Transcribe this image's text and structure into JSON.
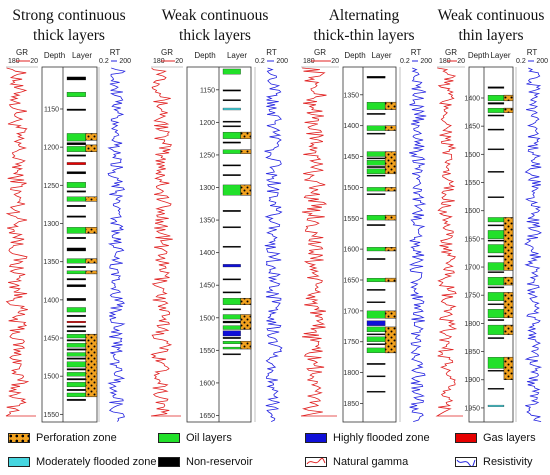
{
  "panels": [
    {
      "title_line1": "Strong continuous",
      "title_line2": "thick layers",
      "header": {
        "gr": "GR",
        "gr_min": "180",
        "gr_max": "20",
        "depth": "Depth",
        "layer": "Layer",
        "rt": "RT",
        "rt_min": "0.2",
        "rt_max": "200"
      },
      "depth_range": [
        1095,
        1560
      ],
      "depth_ticks": [
        1150,
        1200,
        1250,
        1300,
        1350,
        1400,
        1450,
        1500,
        1550
      ],
      "layers": [
        {
          "top": 1108,
          "bottom": 1112,
          "type": "non"
        },
        {
          "top": 1128,
          "bottom": 1134,
          "type": "oil"
        },
        {
          "top": 1150,
          "bottom": 1152,
          "type": "non"
        },
        {
          "top": 1182,
          "bottom": 1192,
          "type": "oil"
        },
        {
          "top": 1194,
          "bottom": 1197,
          "type": "non"
        },
        {
          "top": 1199,
          "bottom": 1206,
          "type": "oil"
        },
        {
          "top": 1210,
          "bottom": 1212,
          "type": "non"
        },
        {
          "top": 1220,
          "bottom": 1223,
          "type": "gas"
        },
        {
          "top": 1232,
          "bottom": 1235,
          "type": "non"
        },
        {
          "top": 1246,
          "bottom": 1253,
          "type": "oil"
        },
        {
          "top": 1257,
          "bottom": 1259,
          "type": "non"
        },
        {
          "top": 1265,
          "bottom": 1271,
          "type": "oil"
        },
        {
          "top": 1276,
          "bottom": 1278,
          "type": "non"
        },
        {
          "top": 1290,
          "bottom": 1292,
          "type": "non"
        },
        {
          "top": 1305,
          "bottom": 1313,
          "type": "oil"
        },
        {
          "top": 1318,
          "bottom": 1320,
          "type": "non"
        },
        {
          "top": 1332,
          "bottom": 1336,
          "type": "non"
        },
        {
          "top": 1346,
          "bottom": 1352,
          "type": "oil"
        },
        {
          "top": 1356,
          "bottom": 1358,
          "type": "non"
        },
        {
          "top": 1362,
          "bottom": 1366,
          "type": "oil"
        },
        {
          "top": 1372,
          "bottom": 1374,
          "type": "non"
        },
        {
          "top": 1380,
          "bottom": 1383,
          "type": "non"
        },
        {
          "top": 1398,
          "bottom": 1401,
          "type": "non"
        },
        {
          "top": 1410,
          "bottom": 1416,
          "type": "oil"
        },
        {
          "top": 1420,
          "bottom": 1422,
          "type": "non"
        },
        {
          "top": 1428,
          "bottom": 1430,
          "type": "gas"
        },
        {
          "top": 1434,
          "bottom": 1436,
          "type": "non"
        },
        {
          "top": 1440,
          "bottom": 1442,
          "type": "non"
        },
        {
          "top": 1445,
          "bottom": 1450,
          "type": "oil"
        },
        {
          "top": 1452,
          "bottom": 1454,
          "type": "non"
        },
        {
          "top": 1457,
          "bottom": 1462,
          "type": "oil"
        },
        {
          "top": 1464,
          "bottom": 1466,
          "type": "non"
        },
        {
          "top": 1469,
          "bottom": 1474,
          "type": "oil"
        },
        {
          "top": 1476,
          "bottom": 1478,
          "type": "non"
        },
        {
          "top": 1481,
          "bottom": 1488,
          "type": "oil"
        },
        {
          "top": 1490,
          "bottom": 1492,
          "type": "non"
        },
        {
          "top": 1495,
          "bottom": 1500,
          "type": "oil"
        },
        {
          "top": 1503,
          "bottom": 1505,
          "type": "non"
        },
        {
          "top": 1508,
          "bottom": 1514,
          "type": "oil"
        },
        {
          "top": 1517,
          "bottom": 1519,
          "type": "non"
        },
        {
          "top": 1522,
          "bottom": 1527,
          "type": "oil"
        },
        {
          "top": 1530,
          "bottom": 1532,
          "type": "non"
        }
      ],
      "perforations": [
        {
          "top": 1182,
          "bottom": 1191
        },
        {
          "top": 1197,
          "bottom": 1206
        },
        {
          "top": 1265,
          "bottom": 1271
        },
        {
          "top": 1305,
          "bottom": 1313
        },
        {
          "top": 1346,
          "bottom": 1352
        },
        {
          "top": 1362,
          "bottom": 1366
        },
        {
          "top": 1445,
          "bottom": 1527
        }
      ]
    },
    {
      "title_line1": "Weak continuous",
      "title_line2": "thick layers",
      "header": {
        "gr": "GR",
        "gr_min": "180",
        "gr_max": "20",
        "depth": "Depth",
        "layer": "Layer",
        "rt": "RT",
        "rt_min": "0.2",
        "rt_max": "200"
      },
      "depth_range": [
        1115,
        1660
      ],
      "depth_ticks": [
        1150,
        1200,
        1250,
        1300,
        1350,
        1400,
        1450,
        1500,
        1550,
        1600,
        1650
      ],
      "layers": [
        {
          "top": 1118,
          "bottom": 1126,
          "type": "oil"
        },
        {
          "top": 1150,
          "bottom": 1152,
          "type": "non"
        },
        {
          "top": 1165,
          "bottom": 1167,
          "type": "non"
        },
        {
          "top": 1178,
          "bottom": 1181,
          "type": "mod"
        },
        {
          "top": 1198,
          "bottom": 1200,
          "type": "non"
        },
        {
          "top": 1205,
          "bottom": 1207,
          "type": "non"
        },
        {
          "top": 1215,
          "bottom": 1225,
          "type": "oil"
        },
        {
          "top": 1230,
          "bottom": 1232,
          "type": "non"
        },
        {
          "top": 1242,
          "bottom": 1248,
          "type": "oil"
        },
        {
          "top": 1265,
          "bottom": 1267,
          "type": "non"
        },
        {
          "top": 1280,
          "bottom": 1282,
          "type": "non"
        },
        {
          "top": 1296,
          "bottom": 1312,
          "type": "oil"
        },
        {
          "top": 1335,
          "bottom": 1337,
          "type": "non"
        },
        {
          "top": 1360,
          "bottom": 1362,
          "type": "non"
        },
        {
          "top": 1390,
          "bottom": 1392,
          "type": "non"
        },
        {
          "top": 1418,
          "bottom": 1422,
          "type": "high"
        },
        {
          "top": 1440,
          "bottom": 1442,
          "type": "non"
        },
        {
          "top": 1460,
          "bottom": 1462,
          "type": "non"
        },
        {
          "top": 1470,
          "bottom": 1480,
          "type": "oil"
        },
        {
          "top": 1486,
          "bottom": 1488,
          "type": "non"
        },
        {
          "top": 1495,
          "bottom": 1502,
          "type": "oil"
        },
        {
          "top": 1505,
          "bottom": 1508,
          "type": "non"
        },
        {
          "top": 1512,
          "bottom": 1518,
          "type": "oil"
        },
        {
          "top": 1520,
          "bottom": 1528,
          "type": "high"
        },
        {
          "top": 1530,
          "bottom": 1532,
          "type": "non"
        },
        {
          "top": 1536,
          "bottom": 1540,
          "type": "oil"
        },
        {
          "top": 1545,
          "bottom": 1548,
          "type": "oil"
        },
        {
          "top": 1555,
          "bottom": 1557,
          "type": "non"
        }
      ],
      "perforations": [
        {
          "top": 1215,
          "bottom": 1225
        },
        {
          "top": 1242,
          "bottom": 1248
        },
        {
          "top": 1296,
          "bottom": 1312
        },
        {
          "top": 1470,
          "bottom": 1480
        },
        {
          "top": 1495,
          "bottom": 1518
        },
        {
          "top": 1536,
          "bottom": 1548
        }
      ]
    },
    {
      "title_line1": "Alternating",
      "title_line2": "thick-thin layers",
      "header": {
        "gr": "GR",
        "gr_min": "180",
        "gr_max": "20",
        "depth": "Depth",
        "layer": "Layer",
        "rt": "RT",
        "rt_min": "0.2",
        "rt_max": "200"
      },
      "depth_range": [
        1305,
        1880
      ],
      "depth_ticks": [
        1350,
        1400,
        1450,
        1500,
        1550,
        1600,
        1650,
        1700,
        1750,
        1800,
        1850
      ],
      "layers": [
        {
          "top": 1320,
          "bottom": 1323,
          "type": "non"
        },
        {
          "top": 1362,
          "bottom": 1374,
          "type": "oil"
        },
        {
          "top": 1380,
          "bottom": 1382,
          "type": "non"
        },
        {
          "top": 1400,
          "bottom": 1408,
          "type": "oil"
        },
        {
          "top": 1412,
          "bottom": 1414,
          "type": "non"
        },
        {
          "top": 1442,
          "bottom": 1450,
          "type": "oil"
        },
        {
          "top": 1452,
          "bottom": 1454,
          "type": "non"
        },
        {
          "top": 1456,
          "bottom": 1464,
          "type": "oil"
        },
        {
          "top": 1466,
          "bottom": 1468,
          "type": "non"
        },
        {
          "top": 1470,
          "bottom": 1478,
          "type": "oil"
        },
        {
          "top": 1480,
          "bottom": 1482,
          "type": "non"
        },
        {
          "top": 1500,
          "bottom": 1506,
          "type": "oil"
        },
        {
          "top": 1510,
          "bottom": 1512,
          "type": "non"
        },
        {
          "top": 1545,
          "bottom": 1553,
          "type": "oil"
        },
        {
          "top": 1560,
          "bottom": 1562,
          "type": "non"
        },
        {
          "top": 1597,
          "bottom": 1603,
          "type": "oil"
        },
        {
          "top": 1615,
          "bottom": 1617,
          "type": "non"
        },
        {
          "top": 1647,
          "bottom": 1653,
          "type": "oil"
        },
        {
          "top": 1665,
          "bottom": 1667,
          "type": "non"
        },
        {
          "top": 1685,
          "bottom": 1687,
          "type": "non"
        },
        {
          "top": 1700,
          "bottom": 1712,
          "type": "oil"
        },
        {
          "top": 1716,
          "bottom": 1724,
          "type": "high"
        },
        {
          "top": 1726,
          "bottom": 1734,
          "type": "oil"
        },
        {
          "top": 1737,
          "bottom": 1739,
          "type": "non"
        },
        {
          "top": 1742,
          "bottom": 1750,
          "type": "oil"
        },
        {
          "top": 1753,
          "bottom": 1755,
          "type": "non"
        },
        {
          "top": 1760,
          "bottom": 1768,
          "type": "oil"
        },
        {
          "top": 1785,
          "bottom": 1787,
          "type": "non"
        },
        {
          "top": 1805,
          "bottom": 1807,
          "type": "non"
        },
        {
          "top": 1830,
          "bottom": 1832,
          "type": "non"
        }
      ],
      "perforations": [
        {
          "top": 1362,
          "bottom": 1374
        },
        {
          "top": 1400,
          "bottom": 1408
        },
        {
          "top": 1442,
          "bottom": 1478
        },
        {
          "top": 1500,
          "bottom": 1506
        },
        {
          "top": 1545,
          "bottom": 1553
        },
        {
          "top": 1597,
          "bottom": 1603
        },
        {
          "top": 1647,
          "bottom": 1653
        },
        {
          "top": 1700,
          "bottom": 1712
        },
        {
          "top": 1726,
          "bottom": 1768
        }
      ]
    },
    {
      "title_line1": "Weak continuous",
      "title_line2": "thin layers",
      "header": {
        "gr": "GR",
        "gr_min": "180",
        "gr_max": "20",
        "depth": "Depth",
        "layer": "Layer",
        "rt": "RT",
        "rt_min": "0.2",
        "rt_max": "200"
      },
      "depth_range": [
        1345,
        1975
      ],
      "depth_ticks": [
        1400,
        1450,
        1500,
        1550,
        1600,
        1650,
        1700,
        1750,
        1800,
        1850,
        1900,
        1950
      ],
      "layers": [
        {
          "top": 1380,
          "bottom": 1383,
          "type": "non"
        },
        {
          "top": 1395,
          "bottom": 1405,
          "type": "oil"
        },
        {
          "top": 1408,
          "bottom": 1411,
          "type": "non"
        },
        {
          "top": 1418,
          "bottom": 1426,
          "type": "oil"
        },
        {
          "top": 1430,
          "bottom": 1432,
          "type": "non"
        },
        {
          "top": 1455,
          "bottom": 1457,
          "type": "non"
        },
        {
          "top": 1490,
          "bottom": 1492,
          "type": "non"
        },
        {
          "top": 1530,
          "bottom": 1532,
          "type": "non"
        },
        {
          "top": 1575,
          "bottom": 1577,
          "type": "non"
        },
        {
          "top": 1612,
          "bottom": 1620,
          "type": "oil"
        },
        {
          "top": 1625,
          "bottom": 1627,
          "type": "non"
        },
        {
          "top": 1635,
          "bottom": 1650,
          "type": "oil"
        },
        {
          "top": 1652,
          "bottom": 1654,
          "type": "non"
        },
        {
          "top": 1660,
          "bottom": 1675,
          "type": "oil"
        },
        {
          "top": 1680,
          "bottom": 1682,
          "type": "non"
        },
        {
          "top": 1692,
          "bottom": 1706,
          "type": "oil"
        },
        {
          "top": 1708,
          "bottom": 1710,
          "type": "non"
        },
        {
          "top": 1718,
          "bottom": 1732,
          "type": "oil"
        },
        {
          "top": 1735,
          "bottom": 1737,
          "type": "non"
        },
        {
          "top": 1745,
          "bottom": 1760,
          "type": "oil"
        },
        {
          "top": 1765,
          "bottom": 1767,
          "type": "non"
        },
        {
          "top": 1775,
          "bottom": 1790,
          "type": "oil"
        },
        {
          "top": 1793,
          "bottom": 1795,
          "type": "non"
        },
        {
          "top": 1803,
          "bottom": 1820,
          "type": "oil"
        },
        {
          "top": 1825,
          "bottom": 1827,
          "type": "non"
        },
        {
          "top": 1860,
          "bottom": 1880,
          "type": "oil"
        },
        {
          "top": 1883,
          "bottom": 1885,
          "type": "non"
        },
        {
          "top": 1915,
          "bottom": 1917,
          "type": "non"
        },
        {
          "top": 1945,
          "bottom": 1948,
          "type": "mod"
        }
      ],
      "perforations": [
        {
          "top": 1395,
          "bottom": 1405
        },
        {
          "top": 1418,
          "bottom": 1426
        },
        {
          "top": 1612,
          "bottom": 1706
        },
        {
          "top": 1718,
          "bottom": 1732
        },
        {
          "top": 1745,
          "bottom": 1790
        },
        {
          "top": 1803,
          "bottom": 1820
        },
        {
          "top": 1860,
          "bottom": 1900
        }
      ]
    }
  ],
  "legend": [
    {
      "label": "Perforation zone",
      "kind": "perforation"
    },
    {
      "label": "Oil layers",
      "kind": "oil"
    },
    {
      "label": "Highly flooded zone",
      "kind": "high"
    },
    {
      "label": "Gas layers",
      "kind": "gas"
    },
    {
      "label": "Moderately flooded zone",
      "kind": "mod"
    },
    {
      "label": "Non-reservoir",
      "kind": "non"
    },
    {
      "label": "Natural gamma",
      "kind": "gamma"
    },
    {
      "label": "Resistivity",
      "kind": "resistivity"
    }
  ],
  "colors": {
    "oil": "#22e02a",
    "gas": "#e60000",
    "high": "#1010d8",
    "mod": "#46d6e0",
    "non": "#000000",
    "perforation": "#f2a21e",
    "gr_curve": "#e02020",
    "rt_curve": "#2323e0"
  }
}
